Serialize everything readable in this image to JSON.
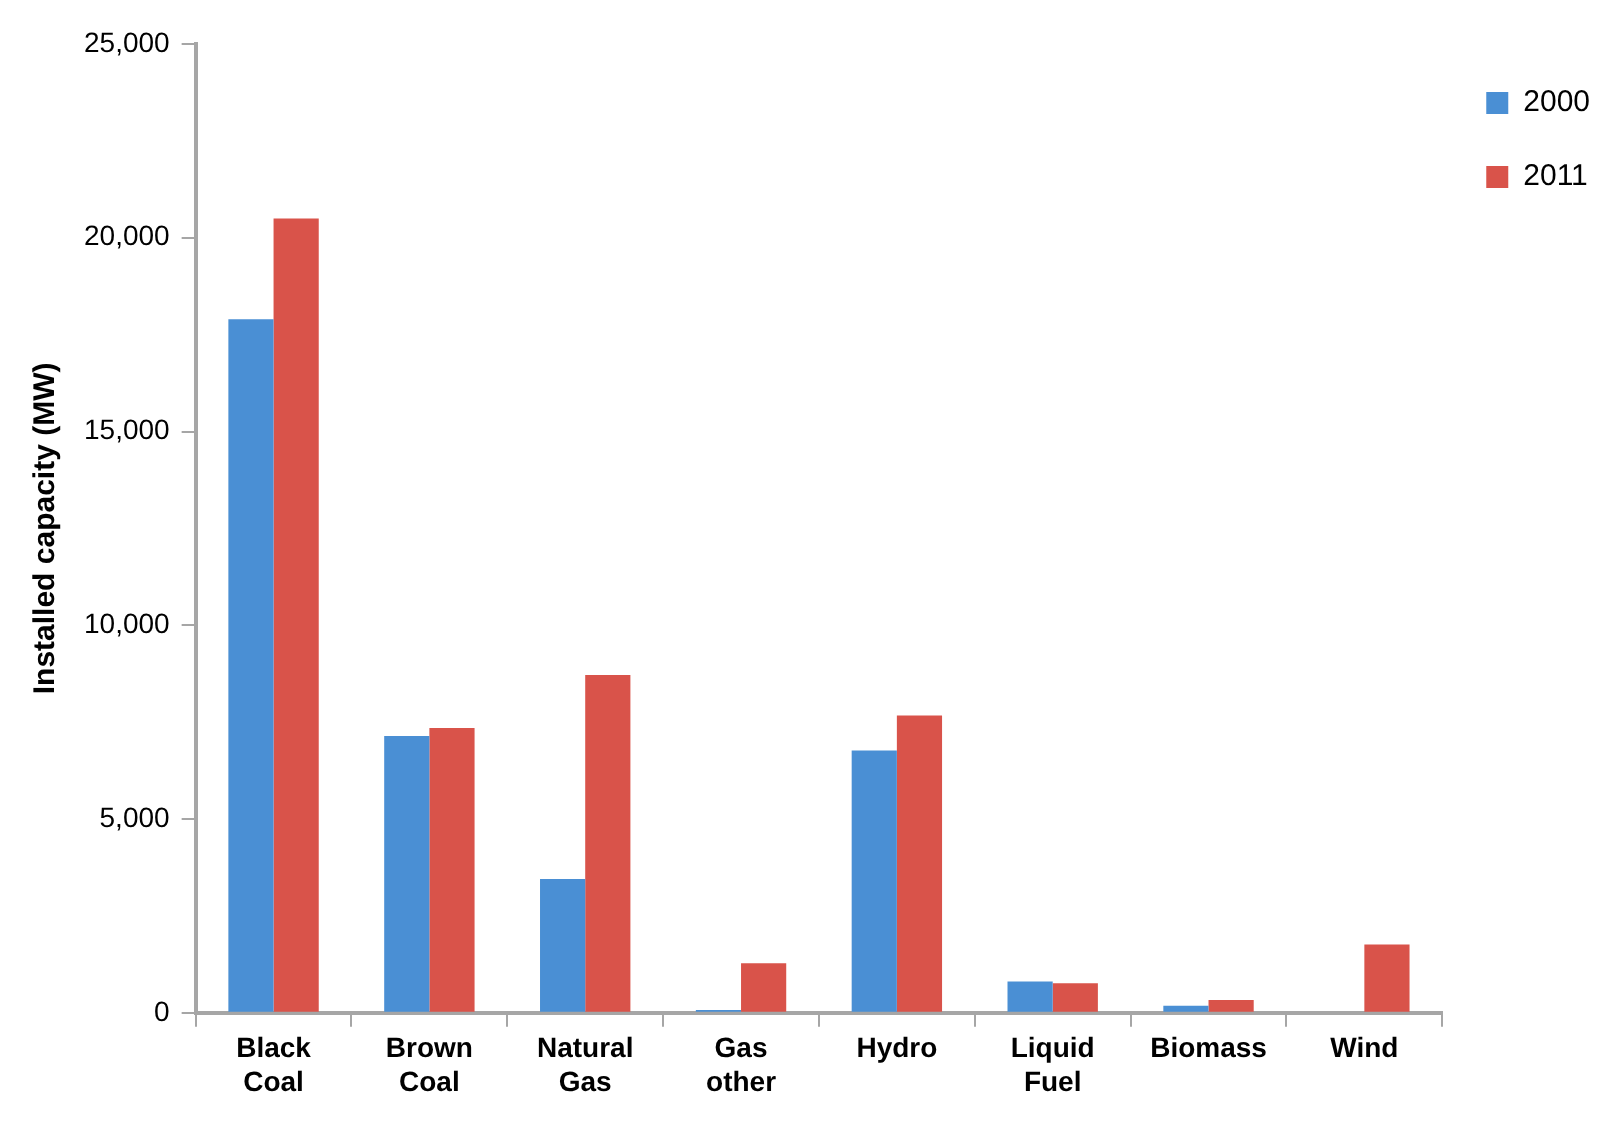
{
  "chart_data": {
    "type": "bar",
    "ylabel": "Installed capacity (MW)",
    "categories": [
      "Black Coal",
      "Brown Coal",
      "Natural Gas",
      "Gas other",
      "Hydro",
      "Liquid Fuel",
      "Biomass",
      "Wind"
    ],
    "series": [
      {
        "name": "2000",
        "color": "#4a8fd4",
        "values": [
          17900,
          7140,
          3450,
          70,
          6770,
          810,
          180,
          0
        ]
      },
      {
        "name": "2011",
        "color": "#d9534a",
        "values": [
          20500,
          7350,
          8720,
          1280,
          7670,
          760,
          330,
          1760
        ]
      }
    ],
    "ylim": [
      0,
      25000
    ],
    "yticks": [
      {
        "value": 0,
        "label": "0"
      },
      {
        "value": 5000,
        "label": "5,000"
      },
      {
        "value": 10000,
        "label": "10,000"
      },
      {
        "value": 15000,
        "label": "15,000"
      },
      {
        "value": 20000,
        "label": "20,000"
      },
      {
        "value": 25000,
        "label": "25,000"
      }
    ],
    "grid": false,
    "legend": "top right"
  }
}
